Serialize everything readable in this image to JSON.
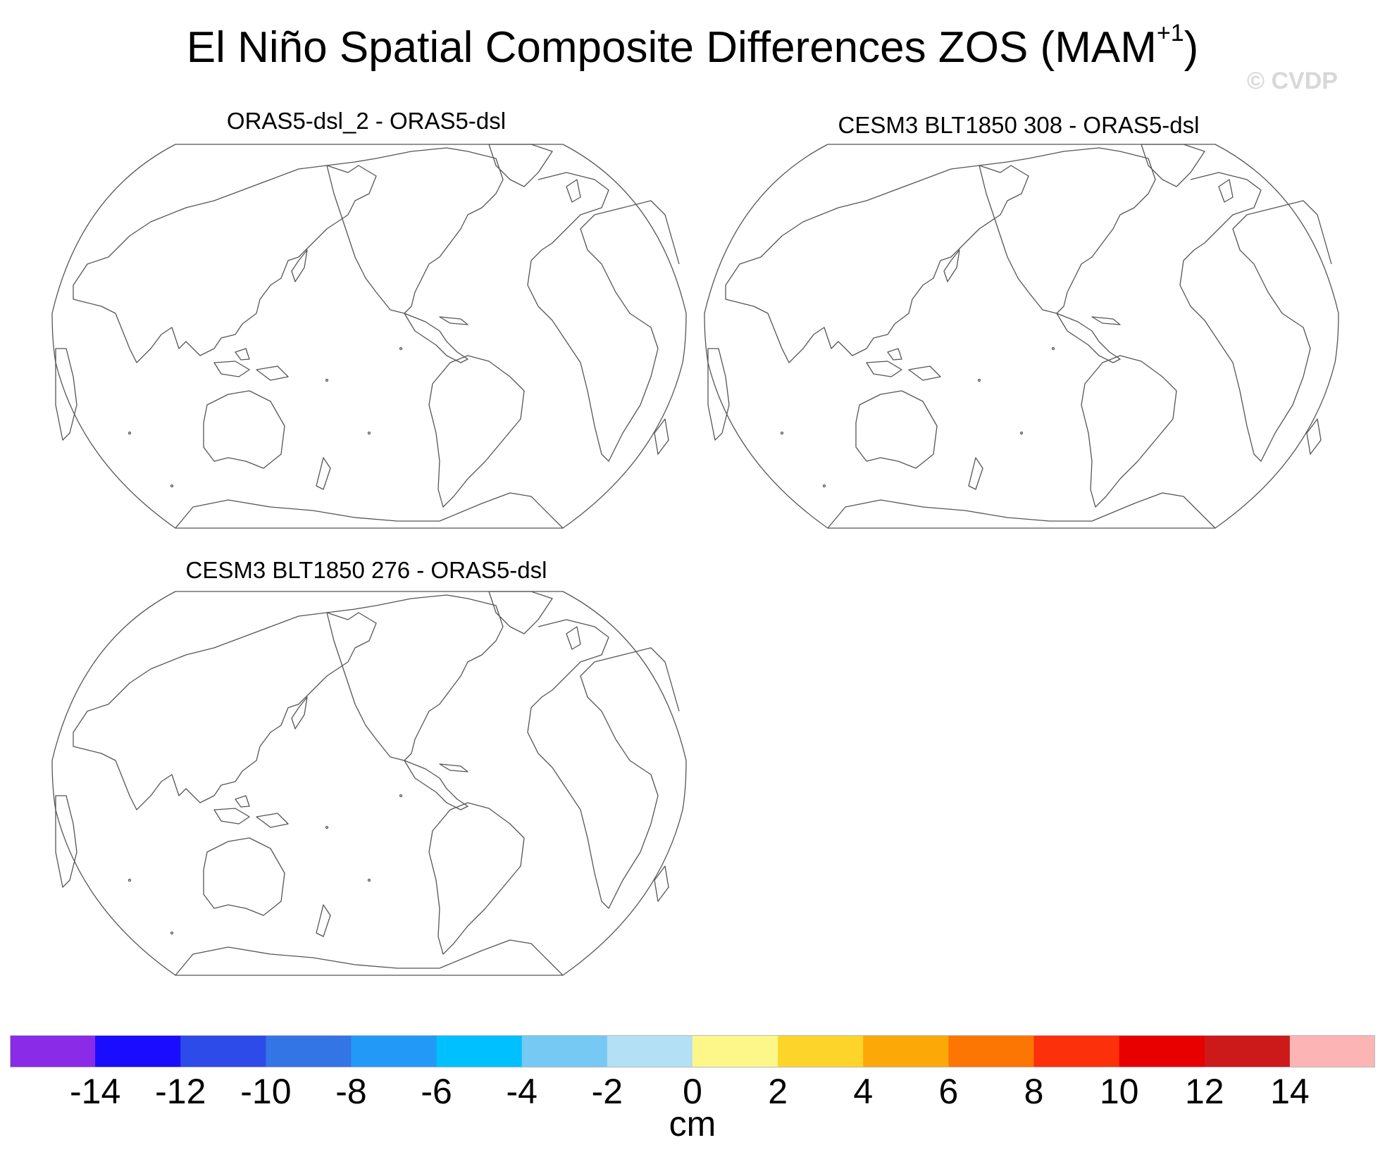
{
  "title": {
    "text": "El Niño Spatial Composite Differences ZOS (MAM",
    "superscript": "+1",
    "close": ")"
  },
  "watermark": "© CVDP",
  "panels": [
    {
      "title": "ORAS5-dsl_2 - ORAS5-dsl"
    },
    {
      "title": "CESM3 BLT1850 308 - ORAS5-dsl"
    },
    {
      "title": "CESM3 BLT1850 276 - ORAS5-dsl"
    }
  ],
  "colorbar": {
    "colors": [
      "#8a2be8",
      "#1a0dff",
      "#2d4be8",
      "#3475e6",
      "#2399f7",
      "#00c0ff",
      "#76c9f2",
      "#b3e0f4",
      "#fdf78a",
      "#fdd42a",
      "#fca908",
      "#fc7604",
      "#fc300a",
      "#e80000",
      "#cc1a1a",
      "#fdb4b4"
    ],
    "labels": [
      "-14",
      "-12",
      "-10",
      "-8",
      "-6",
      "-4",
      "-2",
      "0",
      "2",
      "4",
      "6",
      "8",
      "10",
      "12",
      "14"
    ],
    "units": "cm"
  }
}
